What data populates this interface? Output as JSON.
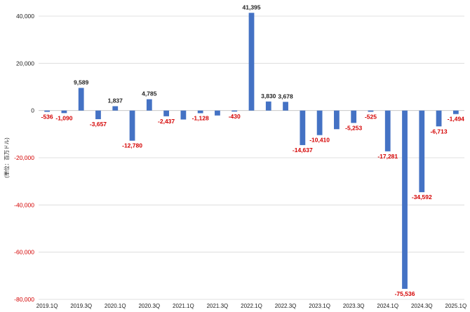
{
  "chart_data": {
    "type": "bar",
    "title": "",
    "xlabel": "",
    "ylabel": "(単位：百万ドル)",
    "ylim": [
      -80000,
      40000
    ],
    "yticks": [
      40000,
      20000,
      0,
      -20000,
      -40000,
      -60000,
      -80000
    ],
    "ytick_labels": [
      "40,000",
      "20,000",
      "0",
      "-20,000",
      "-40,000",
      "-60,000",
      "-80,000"
    ],
    "grid": true,
    "bar_color": "#4472c4",
    "negative_label_color": "#d40000",
    "x_tick_labels": {
      "0": "2019.1Q",
      "2": "2019.3Q",
      "4": "2020.1Q",
      "6": "2020.3Q",
      "8": "2021.1Q",
      "10": "2021.3Q",
      "12": "2022.1Q",
      "14": "2022.3Q",
      "16": "2023.1Q",
      "18": "2023.3Q",
      "20": "2024.1Q",
      "22": "2024.3Q",
      "24": "2025.1Q"
    },
    "categories": [
      "2019.1Q",
      "2019.2Q",
      "2019.3Q",
      "2019.4Q",
      "2020.1Q",
      "2020.2Q",
      "2020.3Q",
      "2020.4Q",
      "2021.1Q",
      "2021.2Q",
      "2021.3Q",
      "2021.4Q",
      "2022.1Q",
      "2022.2Q",
      "2022.3Q",
      "2022.4Q",
      "2023.1Q",
      "2023.2Q",
      "2023.3Q",
      "2023.4Q",
      "2024.1Q",
      "2024.2Q",
      "2024.3Q",
      "2024.4Q",
      "2025.1Q"
    ],
    "values": [
      -536,
      -1090,
      9589,
      -3657,
      1837,
      -12780,
      4785,
      -2437,
      -3800,
      -1128,
      -2100,
      -430,
      41395,
      3830,
      3678,
      -14637,
      -10410,
      -7900,
      -5253,
      -525,
      -17281,
      -75536,
      -34592,
      -6713,
      -1494
    ],
    "data_labels": [
      "-536",
      "-1,090",
      "9,589",
      "-3,657",
      "1,837",
      "-12,780",
      "4,785",
      "-2,437",
      "",
      "-1,128",
      "",
      "-430",
      "41,395",
      "3,830",
      "3,678",
      "-14,637",
      "-10,410",
      "",
      "-5,253",
      "-525",
      "-17,281",
      "-75,536",
      "-34,592",
      "-6,713",
      "-1,494"
    ]
  }
}
